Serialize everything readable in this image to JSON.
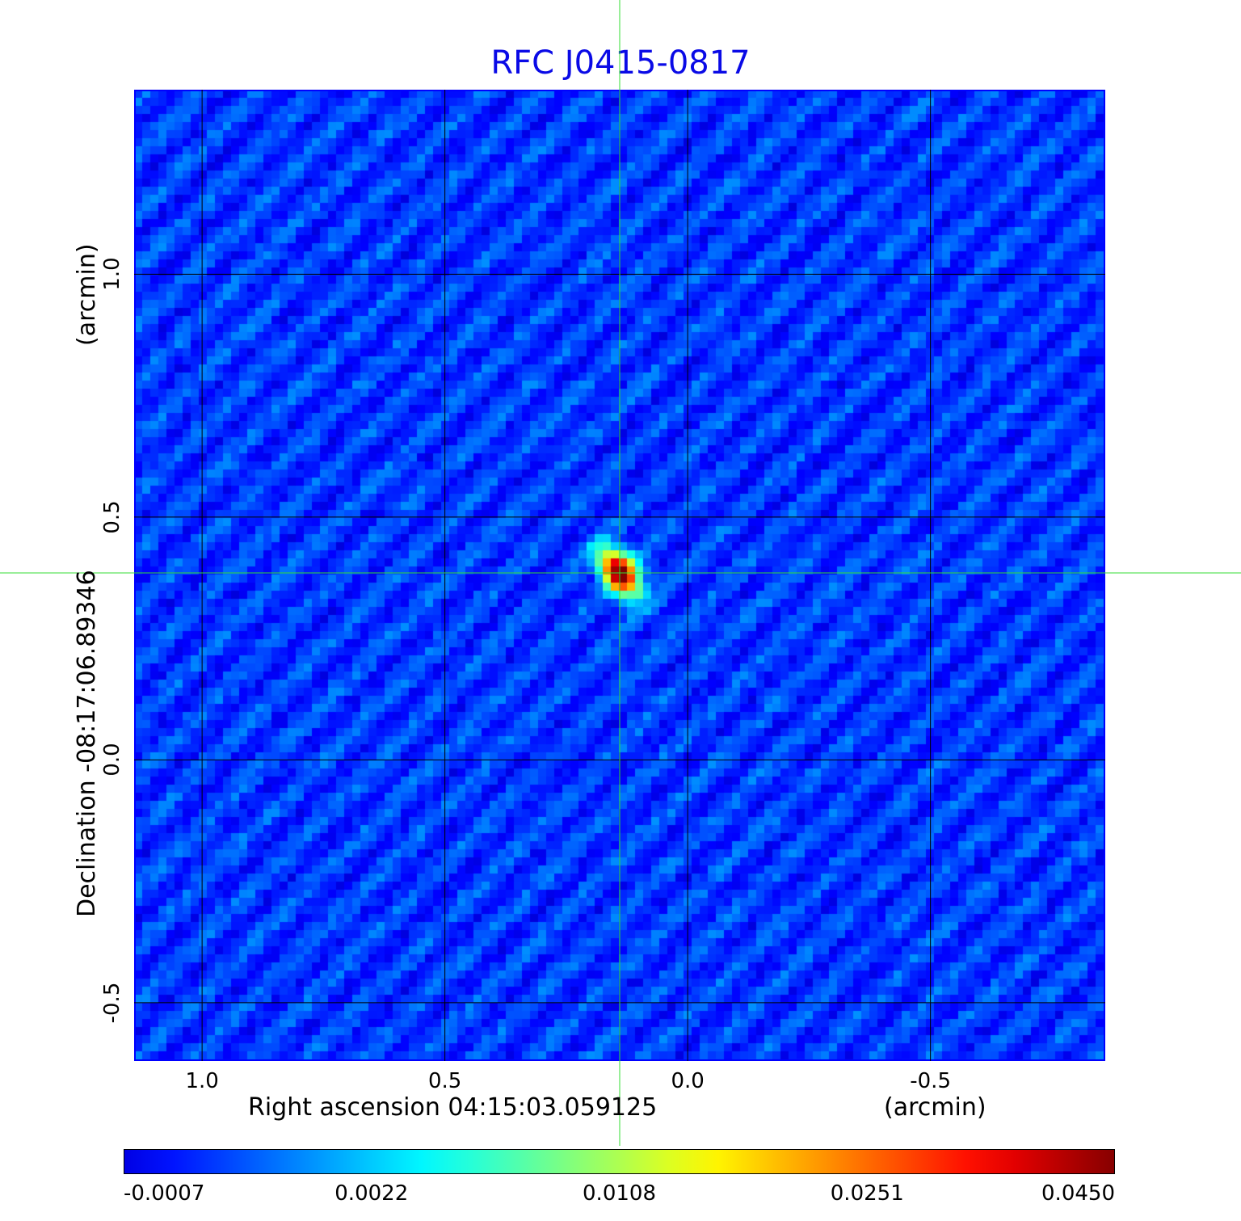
{
  "chart_data": {
    "type": "heatmap",
    "title": "RFC J0415-0817",
    "xlabel": "Right ascension  04:15:03.059125",
    "xunit": "(arcmin)",
    "ylabel": "Declination  -08:17:06.89346",
    "yunit": "(arcmin)",
    "xlim": [
      1.14,
      -0.86
    ],
    "ylim": [
      -0.62,
      1.38
    ],
    "xticks": [
      "1.0",
      "0.5",
      "0.0",
      "-0.5"
    ],
    "xtick_values": [
      1.0,
      0.5,
      0.0,
      -0.5
    ],
    "yticks": [
      "1.0",
      "0.5",
      "0.0",
      "-0.5"
    ],
    "ytick_values": [
      1.0,
      0.5,
      0.0,
      -0.5
    ],
    "grid": true,
    "crosshair": {
      "x": 0.14,
      "y": 0.385,
      "color": "#33dd33"
    },
    "source_peak": {
      "x": 0.14,
      "y": 0.385,
      "value": 0.045
    },
    "colormap": "jet",
    "colorbar": {
      "position": "bottom",
      "ticks": [
        "-0.0007",
        "0.0022",
        "0.0108",
        "0.0251",
        "0.0450"
      ],
      "range": [
        -0.0007,
        0.045
      ]
    },
    "colors": {
      "title": "#0a0ae6",
      "frame": "#0000ff",
      "grid": "#000000"
    }
  }
}
